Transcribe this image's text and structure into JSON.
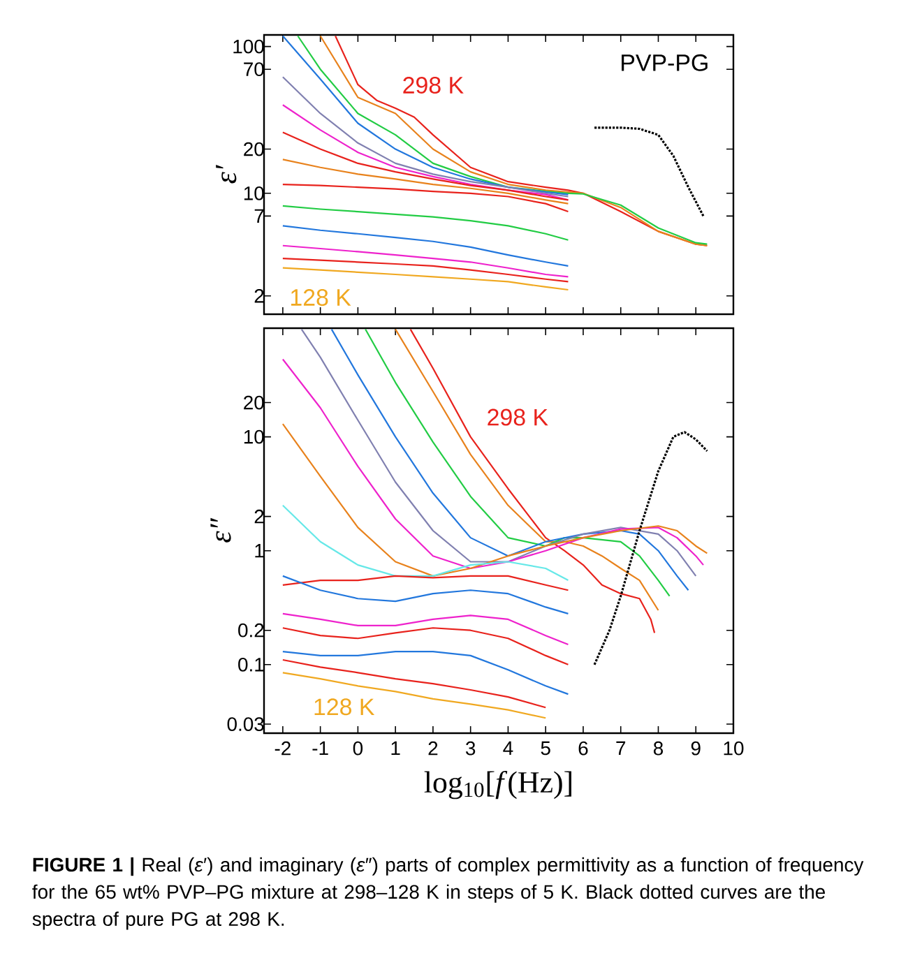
{
  "chart_data": [
    {
      "type": "line",
      "ylabel": "ε′",
      "log": "y",
      "xlim": [
        -2.5,
        10
      ],
      "ylim": [
        1.5,
        120
      ],
      "xticks": [
        -2,
        -1,
        0,
        1,
        2,
        3,
        4,
        5,
        6,
        7,
        8,
        9,
        10
      ],
      "yticks": [
        2,
        7,
        10,
        20,
        70,
        100
      ],
      "tick_labels": "y",
      "line_style": "solid",
      "annotations": [
        "PVP-PG",
        "298 K",
        "128 K"
      ],
      "series": [
        {
          "color": "#e8221c",
          "x": [
            -0.6,
            0,
            0.5,
            1,
            1.5,
            2,
            3,
            4,
            5,
            5.6,
            6,
            7,
            8,
            9,
            9.3
          ],
          "values": [
            118,
            55,
            43,
            38,
            33,
            25,
            15,
            12,
            11,
            10.5,
            10,
            7.5,
            5.5,
            4.5,
            4.4
          ]
        },
        {
          "color": "#e8821c",
          "x": [
            -1,
            0,
            1,
            2,
            3,
            4,
            5,
            5.6,
            6,
            7,
            8,
            9,
            9.3
          ],
          "values": [
            118,
            45,
            35,
            20,
            14,
            11.5,
            10.5,
            10.2,
            10,
            8,
            5.5,
            4.5,
            4.4
          ]
        },
        {
          "color": "#22cc44",
          "x": [
            -1.6,
            -1,
            0,
            1,
            2,
            3,
            4,
            5,
            5.6,
            6,
            7,
            8,
            9,
            9.3
          ],
          "values": [
            118,
            70,
            35,
            25,
            16,
            13,
            11,
            10.3,
            10,
            9.9,
            8.3,
            5.8,
            4.6,
            4.5
          ]
        },
        {
          "color": "#2277dd",
          "x": [
            -2,
            -1,
            0,
            1,
            2,
            3,
            4,
            5,
            5.6
          ],
          "values": [
            118,
            60,
            30,
            20,
            15,
            12.5,
            11,
            10.2,
            9.8
          ]
        },
        {
          "color": "#8080b0",
          "x": [
            -2,
            -1,
            0,
            1,
            2,
            3,
            4,
            5,
            5.6
          ],
          "values": [
            62,
            35,
            22,
            16,
            13.5,
            12,
            11,
            10,
            9.5
          ]
        },
        {
          "color": "#ee22cc",
          "x": [
            -2,
            -1,
            0,
            1,
            2,
            3,
            4,
            5,
            5.6
          ],
          "values": [
            40,
            27,
            19,
            15,
            13,
            11.5,
            10.5,
            9.8,
            9
          ]
        },
        {
          "color": "#e8221c",
          "x": [
            -2,
            -1,
            0,
            1,
            2,
            3,
            4,
            5,
            5.6
          ],
          "values": [
            26,
            20,
            16,
            14,
            12.5,
            11.3,
            10.5,
            9.5,
            9
          ]
        },
        {
          "color": "#e8821c",
          "x": [
            -2,
            -1,
            0,
            1,
            2,
            3,
            4,
            5,
            5.6
          ],
          "values": [
            17,
            15,
            13.5,
            12.5,
            11.5,
            10.8,
            10,
            9,
            8.5
          ]
        },
        {
          "color": "#e8221c",
          "x": [
            -2,
            -1,
            0,
            1,
            2,
            3,
            4,
            5,
            5.6
          ],
          "values": [
            11.5,
            11.3,
            11,
            10.7,
            10.3,
            10,
            9.5,
            8.5,
            7.5
          ]
        },
        {
          "color": "#22cc44",
          "x": [
            -2,
            -1,
            0,
            1,
            2,
            3,
            4,
            5,
            5.6
          ],
          "values": [
            8.2,
            7.8,
            7.5,
            7.2,
            6.9,
            6.5,
            6,
            5.3,
            4.8
          ]
        },
        {
          "color": "#2277dd",
          "x": [
            -2,
            -1,
            0,
            1,
            2,
            3,
            4,
            5,
            5.6
          ],
          "values": [
            6,
            5.6,
            5.3,
            5,
            4.7,
            4.3,
            3.8,
            3.4,
            3.2
          ]
        },
        {
          "color": "#ee22cc",
          "x": [
            -2,
            -1,
            0,
            1,
            2,
            3,
            4,
            5,
            5.6
          ],
          "values": [
            4.4,
            4.2,
            4,
            3.8,
            3.6,
            3.4,
            3.1,
            2.8,
            2.7
          ]
        },
        {
          "color": "#e8221c",
          "x": [
            -2,
            -1,
            0,
            1,
            2,
            3,
            4,
            5,
            5.6
          ],
          "values": [
            3.6,
            3.5,
            3.4,
            3.3,
            3.2,
            3,
            2.8,
            2.6,
            2.5
          ]
        },
        {
          "color": "#f0a820",
          "x": [
            -2,
            -1,
            0,
            1,
            2,
            3,
            4,
            5,
            5.6
          ],
          "values": [
            3.1,
            3,
            2.9,
            2.8,
            2.7,
            2.6,
            2.5,
            2.3,
            2.2
          ]
        },
        {
          "color": "#000000",
          "line_style": "dotted",
          "x": [
            6.3,
            7,
            7.5,
            8,
            8.4,
            8.8,
            9.2
          ],
          "values": [
            28,
            28,
            27.5,
            25,
            18,
            11,
            7
          ]
        }
      ]
    },
    {
      "type": "line",
      "ylabel": "ε″",
      "xlabel": "log$_{10}$[*f*(Hz)]",
      "log": "y",
      "xlim": [
        -2.5,
        10
      ],
      "ylim": [
        0.025,
        90
      ],
      "xticks": [
        -2,
        -1,
        0,
        1,
        2,
        3,
        4,
        5,
        6,
        7,
        8,
        9,
        10
      ],
      "yticks": [
        0.03,
        0.1,
        0.2,
        1,
        2,
        10,
        20
      ],
      "line_style": "solid",
      "annotations": [
        "**FIGURE 1 |** Real (*ε*′) and imaginary (*ε*″) parts of complex permittivity as a function of frequency for the 65 wt% PVP–PG mixture at 298–128 K in steps of 5 K. Black dotted curves are the spectra of pure PG at 298 K.",
        "298 K",
        "128 K"
      ],
      "series": [
        {
          "color": "#e8221c",
          "x": [
            1.4,
            2,
            3,
            4,
            5,
            5.5,
            6,
            6.5,
            7,
            7.5,
            7.8,
            7.9
          ],
          "values": [
            88,
            40,
            10,
            3.5,
            1.3,
            1,
            0.75,
            0.5,
            0.42,
            0.38,
            0.25,
            0.19
          ]
        },
        {
          "color": "#e8821c",
          "x": [
            1,
            2,
            3,
            4,
            5,
            5.5,
            6,
            6.5,
            7,
            7.5,
            8
          ],
          "values": [
            88,
            25,
            7,
            2.5,
            1.2,
            1.2,
            1.1,
            0.9,
            0.7,
            0.55,
            0.3
          ]
        },
        {
          "color": "#22cc44",
          "x": [
            0.2,
            1,
            2,
            3,
            4,
            5,
            5.5,
            6,
            7,
            7.5,
            8,
            8.3
          ],
          "values": [
            88,
            30,
            9,
            3,
            1.3,
            1.1,
            1.3,
            1.3,
            1.2,
            0.9,
            0.55,
            0.4
          ]
        },
        {
          "color": "#2277dd",
          "x": [
            -0.7,
            0,
            1,
            2,
            3,
            4,
            5,
            6,
            7,
            7.5,
            8,
            8.5,
            8.8
          ],
          "values": [
            88,
            35,
            10,
            3.2,
            1.3,
            0.9,
            1.2,
            1.4,
            1.5,
            1.4,
            1,
            0.6,
            0.45
          ]
        },
        {
          "color": "#8080b0",
          "x": [
            -1.5,
            -1,
            0,
            1,
            2,
            3,
            4,
            5,
            6,
            7,
            8,
            8.5,
            9
          ],
          "values": [
            88,
            50,
            14,
            4,
            1.5,
            0.8,
            0.8,
            1.1,
            1.4,
            1.6,
            1.4,
            1,
            0.6
          ]
        },
        {
          "color": "#ee22cc",
          "x": [
            -2,
            -1,
            0,
            1,
            2,
            3,
            4,
            5,
            6,
            7,
            8,
            8.5,
            9,
            9.2
          ],
          "values": [
            48,
            18,
            5.5,
            1.9,
            0.9,
            0.7,
            0.8,
            1,
            1.3,
            1.55,
            1.6,
            1.3,
            0.9,
            0.75
          ]
        },
        {
          "color": "#e8821c",
          "x": [
            -2,
            -1,
            0,
            1,
            2,
            3,
            4,
            5,
            6,
            7,
            8,
            8.5,
            9,
            9.3
          ],
          "values": [
            13,
            4.5,
            1.6,
            0.8,
            0.6,
            0.7,
            0.9,
            1.1,
            1.3,
            1.5,
            1.65,
            1.5,
            1.1,
            0.95
          ]
        },
        {
          "color": "#66e8e8",
          "x": [
            -2,
            -1,
            0,
            1,
            2,
            3,
            4,
            5,
            5.6
          ],
          "values": [
            2.5,
            1.2,
            0.75,
            0.6,
            0.6,
            0.75,
            0.8,
            0.7,
            0.55
          ]
        },
        {
          "color": "#e8221c",
          "x": [
            -2,
            -1,
            0,
            1,
            2,
            3,
            4,
            5,
            5.6
          ],
          "values": [
            0.5,
            0.55,
            0.55,
            0.6,
            0.58,
            0.6,
            0.6,
            0.5,
            0.45
          ]
        },
        {
          "color": "#2277dd",
          "x": [
            -2,
            -1,
            0,
            1,
            2,
            3,
            4,
            5,
            5.6
          ],
          "values": [
            0.6,
            0.45,
            0.38,
            0.36,
            0.42,
            0.45,
            0.42,
            0.32,
            0.28
          ]
        },
        {
          "color": "#ee22cc",
          "x": [
            -2,
            -1,
            0,
            1,
            2,
            3,
            4,
            5,
            5.6
          ],
          "values": [
            0.28,
            0.25,
            0.22,
            0.22,
            0.25,
            0.27,
            0.25,
            0.18,
            0.15
          ]
        },
        {
          "color": "#e8221c",
          "x": [
            -2,
            -1,
            0,
            1,
            2,
            3,
            4,
            5,
            5.6
          ],
          "values": [
            0.21,
            0.18,
            0.17,
            0.19,
            0.21,
            0.2,
            0.17,
            0.12,
            0.1
          ]
        },
        {
          "color": "#2277dd",
          "x": [
            -2,
            -1,
            0,
            1,
            2,
            3,
            4,
            5,
            5.6
          ],
          "values": [
            0.13,
            0.12,
            0.12,
            0.13,
            0.13,
            0.12,
            0.09,
            0.065,
            0.055
          ]
        },
        {
          "color": "#e8221c",
          "x": [
            -2,
            -1,
            0,
            1,
            2,
            3,
            4,
            5
          ],
          "values": [
            0.11,
            0.095,
            0.085,
            0.075,
            0.068,
            0.06,
            0.052,
            0.042
          ]
        },
        {
          "color": "#f0a820",
          "x": [
            -2,
            -1,
            0,
            1,
            2,
            3,
            4,
            5
          ],
          "values": [
            0.085,
            0.075,
            0.065,
            0.058,
            0.05,
            0.045,
            0.04,
            0.034
          ]
        },
        {
          "color": "#000000",
          "line_style": "dotted",
          "x": [
            6.3,
            6.7,
            7,
            7.5,
            8,
            8.4,
            8.7,
            9,
            9.3
          ],
          "values": [
            0.1,
            0.2,
            0.4,
            1.5,
            5,
            10,
            11,
            9.5,
            7.5
          ]
        }
      ]
    }
  ]
}
